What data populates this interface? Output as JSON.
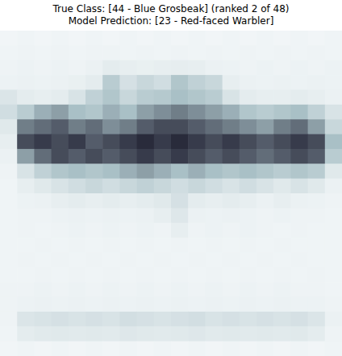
{
  "chart_data": {
    "type": "heatmap",
    "title": "True Class: [44 - Blue Grosbeak] (ranked 2 of 48)\nModel Prediction: [23 - Red-faced Warbler]",
    "tick_labels": false,
    "zlim": [
      0,
      1
    ],
    "cells": [
      [
        0.04,
        0.05,
        0.04,
        0.05,
        0.04,
        0.05,
        0.04,
        0.05,
        0.04,
        0.05,
        0.04,
        0.05,
        0.04,
        0.05,
        0.04,
        0.05,
        0.04,
        0.05,
        0.04,
        0.05
      ],
      [
        0.05,
        0.06,
        0.05,
        0.06,
        0.05,
        0.06,
        0.06,
        0.05,
        0.06,
        0.05,
        0.06,
        0.05,
        0.06,
        0.05,
        0.06,
        0.05,
        0.06,
        0.05,
        0.06,
        0.05
      ],
      [
        0.06,
        0.07,
        0.06,
        0.07,
        0.06,
        0.08,
        0.12,
        0.1,
        0.09,
        0.1,
        0.11,
        0.1,
        0.08,
        0.07,
        0.06,
        0.07,
        0.06,
        0.07,
        0.06,
        0.07
      ],
      [
        0.07,
        0.08,
        0.07,
        0.08,
        0.09,
        0.12,
        0.4,
        0.22,
        0.3,
        0.25,
        0.45,
        0.35,
        0.3,
        0.1,
        0.08,
        0.07,
        0.08,
        0.07,
        0.08,
        0.07
      ],
      [
        0.18,
        0.12,
        0.1,
        0.12,
        0.2,
        0.35,
        0.45,
        0.3,
        0.4,
        0.42,
        0.5,
        0.45,
        0.4,
        0.2,
        0.12,
        0.1,
        0.1,
        0.12,
        0.1,
        0.08
      ],
      [
        0.25,
        0.4,
        0.55,
        0.6,
        0.5,
        0.45,
        0.55,
        0.5,
        0.6,
        0.65,
        0.7,
        0.65,
        0.6,
        0.55,
        0.45,
        0.4,
        0.45,
        0.5,
        0.35,
        0.2
      ],
      [
        0.15,
        0.7,
        0.75,
        0.8,
        0.7,
        0.75,
        0.65,
        0.7,
        0.8,
        0.85,
        0.85,
        0.8,
        0.75,
        0.7,
        0.65,
        0.6,
        0.7,
        0.75,
        0.6,
        0.3
      ],
      [
        0.1,
        0.85,
        0.9,
        0.85,
        0.9,
        0.8,
        0.85,
        0.9,
        0.95,
        0.9,
        0.95,
        0.9,
        0.85,
        0.9,
        0.85,
        0.8,
        0.85,
        0.9,
        0.85,
        0.5
      ],
      [
        0.08,
        0.6,
        0.75,
        0.85,
        0.8,
        0.85,
        0.8,
        0.85,
        0.9,
        0.85,
        0.9,
        0.85,
        0.8,
        0.85,
        0.8,
        0.75,
        0.8,
        0.85,
        0.8,
        0.4
      ],
      [
        0.06,
        0.2,
        0.35,
        0.45,
        0.5,
        0.45,
        0.5,
        0.55,
        0.6,
        0.55,
        0.5,
        0.55,
        0.5,
        0.45,
        0.5,
        0.45,
        0.4,
        0.45,
        0.4,
        0.15
      ],
      [
        0.05,
        0.1,
        0.15,
        0.2,
        0.25,
        0.3,
        0.25,
        0.3,
        0.35,
        0.3,
        0.25,
        0.3,
        0.25,
        0.2,
        0.25,
        0.2,
        0.15,
        0.2,
        0.15,
        0.08
      ],
      [
        0.05,
        0.07,
        0.08,
        0.1,
        0.12,
        0.1,
        0.12,
        0.1,
        0.12,
        0.15,
        0.22,
        0.12,
        0.1,
        0.12,
        0.1,
        0.08,
        0.1,
        0.08,
        0.07,
        0.06
      ],
      [
        0.05,
        0.06,
        0.06,
        0.07,
        0.08,
        0.07,
        0.08,
        0.07,
        0.08,
        0.1,
        0.16,
        0.08,
        0.07,
        0.08,
        0.07,
        0.06,
        0.07,
        0.06,
        0.06,
        0.05
      ],
      [
        0.05,
        0.06,
        0.05,
        0.06,
        0.07,
        0.06,
        0.07,
        0.06,
        0.07,
        0.06,
        0.1,
        0.06,
        0.07,
        0.06,
        0.07,
        0.06,
        0.05,
        0.06,
        0.05,
        0.05
      ],
      [
        0.05,
        0.05,
        0.06,
        0.05,
        0.06,
        0.05,
        0.06,
        0.05,
        0.06,
        0.05,
        0.06,
        0.05,
        0.06,
        0.05,
        0.06,
        0.05,
        0.06,
        0.05,
        0.05,
        0.05
      ],
      [
        0.05,
        0.06,
        0.05,
        0.06,
        0.05,
        0.06,
        0.05,
        0.06,
        0.05,
        0.06,
        0.05,
        0.06,
        0.05,
        0.06,
        0.05,
        0.06,
        0.05,
        0.06,
        0.05,
        0.05
      ],
      [
        0.05,
        0.05,
        0.06,
        0.05,
        0.06,
        0.05,
        0.06,
        0.05,
        0.06,
        0.05,
        0.06,
        0.05,
        0.06,
        0.05,
        0.06,
        0.05,
        0.06,
        0.05,
        0.06,
        0.05
      ],
      [
        0.06,
        0.06,
        0.07,
        0.06,
        0.07,
        0.06,
        0.07,
        0.06,
        0.07,
        0.06,
        0.07,
        0.06,
        0.07,
        0.06,
        0.07,
        0.06,
        0.07,
        0.06,
        0.06,
        0.05
      ],
      [
        0.06,
        0.07,
        0.08,
        0.07,
        0.08,
        0.07,
        0.08,
        0.07,
        0.08,
        0.07,
        0.08,
        0.07,
        0.08,
        0.07,
        0.08,
        0.07,
        0.08,
        0.07,
        0.07,
        0.06
      ],
      [
        0.06,
        0.18,
        0.2,
        0.22,
        0.2,
        0.22,
        0.2,
        0.24,
        0.22,
        0.2,
        0.22,
        0.24,
        0.2,
        0.22,
        0.2,
        0.22,
        0.2,
        0.22,
        0.18,
        0.08
      ],
      [
        0.05,
        0.12,
        0.14,
        0.15,
        0.14,
        0.15,
        0.14,
        0.16,
        0.15,
        0.14,
        0.15,
        0.16,
        0.14,
        0.15,
        0.14,
        0.15,
        0.14,
        0.15,
        0.12,
        0.06
      ],
      [
        0.04,
        0.05,
        0.04,
        0.05,
        0.04,
        0.05,
        0.04,
        0.05,
        0.04,
        0.05,
        0.04,
        0.05,
        0.04,
        0.05,
        0.04,
        0.05,
        0.04,
        0.05,
        0.04,
        0.05
      ]
    ]
  }
}
